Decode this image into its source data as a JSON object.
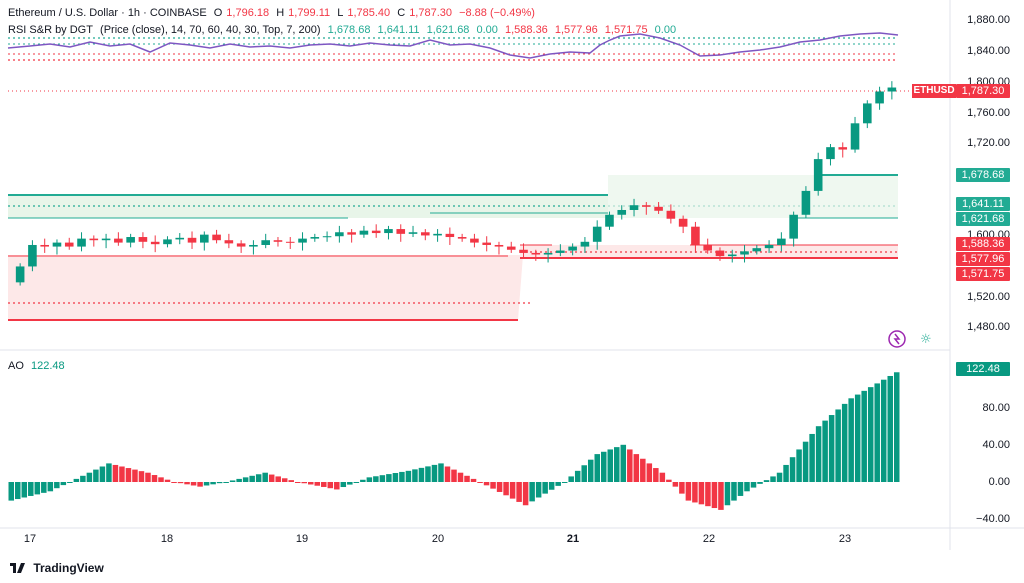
{
  "header": {
    "symbol": "Ethereum / U.S. Dollar · 1h · COINBASE",
    "o_label": "O",
    "o_value": "1,796.18",
    "h_label": "H",
    "h_value": "1,799.11",
    "l_label": "L",
    "l_value": "1,785.40",
    "c_label": "C",
    "c_value": "1,787.30",
    "change": "−8.88 (−0.49%)"
  },
  "indicator": {
    "name": "RSI S&R by DGT",
    "params": "(Price (close), 14, 70, 60, 40, 30, Top, 7, 200)",
    "v1": "1,678.68",
    "v2": "1,641.11",
    "v3": "1,621.68",
    "v4": "0.00",
    "v5": "1,588.36",
    "v6": "1,577.96",
    "v7": "1,571.75",
    "v8": "0.00"
  },
  "ao": {
    "label": "AO",
    "value": "122.48"
  },
  "price_axis": [
    "1,880.00",
    "1,840.00",
    "1,800.00",
    "1,760.00",
    "1,720.00",
    "1,600.00",
    "1,520.00",
    "1,480.00"
  ],
  "ao_axis": [
    "80.00",
    "40.00",
    "0.00",
    "−40.00"
  ],
  "time_axis": [
    "17",
    "18",
    "19",
    "20",
    "21",
    "22",
    "23"
  ],
  "price_tags": {
    "symbol": "ETHUSD",
    "last": "1,787.30",
    "t1": "1,678.68",
    "t2": "1,641.11",
    "t3": "1,621.68",
    "t4": "1,588.36",
    "t5": "1,577.96",
    "t6": "1,571.75",
    "ao_last": "122.48"
  },
  "branding": "TradingView",
  "colors": {
    "up": "#089981",
    "down": "#f23645",
    "rsi": "#7e57c2",
    "support_fill": "#e8f5e9",
    "resist_fill": "#fde8e8"
  },
  "chart_data": {
    "type": "candlestick",
    "x_labels": [
      "17",
      "18",
      "19",
      "20",
      "21",
      "22",
      "23"
    ],
    "ylim": [
      1470,
      1890
    ],
    "close_series_approx": [
      1565,
      1592,
      1590,
      1595,
      1590,
      1600,
      1598,
      1600,
      1595,
      1602,
      1596,
      1593,
      1599,
      1601,
      1595,
      1605,
      1598,
      1594,
      1590,
      1592,
      1598,
      1596,
      1595,
      1600,
      1602,
      1603,
      1608,
      1605,
      1610,
      1607,
      1612,
      1606,
      1608,
      1604,
      1606,
      1602,
      1600,
      1595,
      1592,
      1590,
      1586,
      1582,
      1580,
      1582,
      1585,
      1590,
      1596,
      1615,
      1630,
      1636,
      1642,
      1640,
      1635,
      1625,
      1615,
      1592,
      1585,
      1578,
      1580,
      1584,
      1588,
      1592,
      1600,
      1630,
      1660,
      1700,
      1715,
      1712,
      1745,
      1770,
      1785,
      1790
    ],
    "ao": {
      "ylim": [
        -45,
        130
      ],
      "last": 122.48
    }
  }
}
